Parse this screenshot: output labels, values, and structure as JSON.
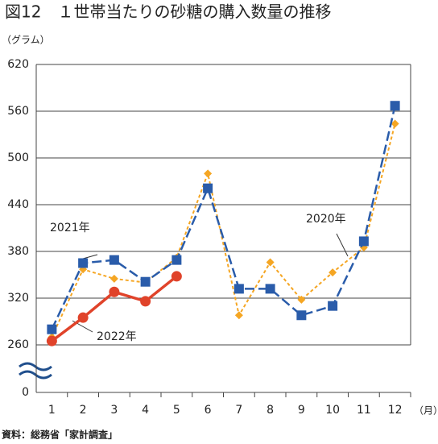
{
  "chart_data": {
    "type": "line",
    "title": "図12　１世帯当たりの砂糖の購入数量の推移",
    "y_unit": "（グラム）",
    "x_unit": "（月）",
    "source": "資料：総務省「家計調査」",
    "categories": [
      "1",
      "2",
      "3",
      "4",
      "5",
      "6",
      "7",
      "8",
      "9",
      "10",
      "11",
      "12"
    ],
    "ylim": [
      0,
      620
    ],
    "axis_break": [
      0,
      260
    ],
    "yticks": [
      0,
      260,
      320,
      380,
      440,
      500,
      560,
      620
    ],
    "grid": true,
    "series": [
      {
        "name": "2020年",
        "color": "#f5a623",
        "values": [
          270,
          357,
          345,
          340,
          372,
          480,
          298,
          366,
          318,
          353,
          385,
          544
        ]
      },
      {
        "name": "2021年",
        "color": "#2a5caa",
        "values": [
          280,
          365,
          369,
          341,
          369,
          461,
          332,
          332,
          298,
          310,
          393,
          567
        ]
      },
      {
        "name": "2022年",
        "color": "#e0432a",
        "values": [
          265,
          295,
          328,
          316,
          348,
          null,
          null,
          null,
          null,
          null,
          null,
          null
        ]
      }
    ]
  }
}
